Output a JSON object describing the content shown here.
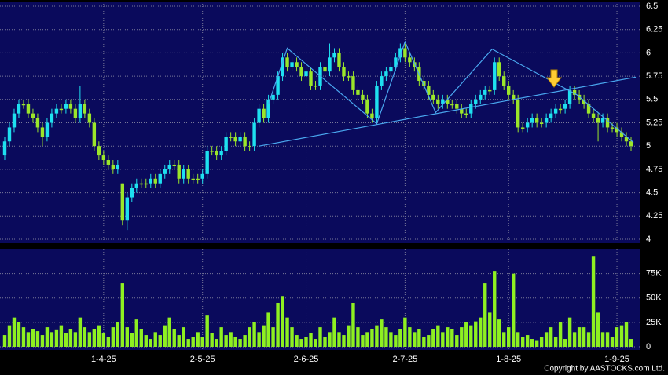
{
  "chart_data": {
    "type": "candlestick",
    "open": [
      4.9,
      5.05,
      5.2,
      5.35,
      5.45,
      5.45,
      5.35,
      5.3,
      5.2,
      5.1,
      5.25,
      5.35,
      5.4,
      5.4,
      5.45,
      5.4,
      5.3,
      5.45,
      5.35,
      5.25,
      5.0,
      4.9,
      4.85,
      4.8,
      4.75,
      4.6,
      4.2,
      4.45,
      4.55,
      4.6,
      4.6,
      4.6,
      4.65,
      4.6,
      4.7,
      4.75,
      4.8,
      4.8,
      4.65,
      4.75,
      4.65,
      4.65,
      4.65,
      4.7,
      4.95,
      4.95,
      4.9,
      4.95,
      5.1,
      5.1,
      5.05,
      5.1,
      5.0,
      5.0,
      5.25,
      5.4,
      5.3,
      5.5,
      5.55,
      5.75,
      5.95,
      5.85,
      5.9,
      5.85,
      5.75,
      5.8,
      5.65,
      5.65,
      5.85,
      5.8,
      5.95,
      6.0,
      5.85,
      5.75,
      5.75,
      5.6,
      5.55,
      5.5,
      5.35,
      5.3,
      5.65,
      5.75,
      5.8,
      5.85,
      5.95,
      6.05,
      5.95,
      5.9,
      5.85,
      5.7,
      5.65,
      5.55,
      5.5,
      5.45,
      5.5,
      5.45,
      5.45,
      5.4,
      5.35,
      5.35,
      5.45,
      5.5,
      5.55,
      5.6,
      5.6,
      5.9,
      5.75,
      5.65,
      5.55,
      5.5,
      5.2,
      5.2,
      5.25,
      5.3,
      5.25,
      5.25,
      5.3,
      5.35,
      5.4,
      5.4,
      5.45,
      5.6,
      5.55,
      5.5,
      5.45,
      5.35,
      5.3,
      5.25,
      5.3,
      5.2,
      5.2,
      5.15,
      5.1,
      5.05
    ],
    "high": [
      5.1,
      5.25,
      5.4,
      5.5,
      5.5,
      5.5,
      5.4,
      5.35,
      5.25,
      5.3,
      5.4,
      5.45,
      5.45,
      5.5,
      5.5,
      5.45,
      5.65,
      5.5,
      5.4,
      5.3,
      5.05,
      4.95,
      4.9,
      4.85,
      4.85,
      4.6,
      4.5,
      4.6,
      4.65,
      4.65,
      4.65,
      4.7,
      4.7,
      4.75,
      4.8,
      4.85,
      4.85,
      4.85,
      4.8,
      4.8,
      4.7,
      4.7,
      4.75,
      5.0,
      5.0,
      5.0,
      5.0,
      5.15,
      5.15,
      5.15,
      5.15,
      5.15,
      5.05,
      5.3,
      5.45,
      5.45,
      5.55,
      5.6,
      5.8,
      6.0,
      6.0,
      5.95,
      5.95,
      5.9,
      5.85,
      5.85,
      5.7,
      5.9,
      5.9,
      6.1,
      6.05,
      6.05,
      5.9,
      5.8,
      5.8,
      5.65,
      5.6,
      5.55,
      5.4,
      5.7,
      5.8,
      5.85,
      5.9,
      6.0,
      6.1,
      6.1,
      6.0,
      5.95,
      5.9,
      5.75,
      5.7,
      5.6,
      5.55,
      5.55,
      5.55,
      5.5,
      5.5,
      5.45,
      5.4,
      5.5,
      5.55,
      5.6,
      5.65,
      5.65,
      5.95,
      5.95,
      5.8,
      5.7,
      5.6,
      5.55,
      5.25,
      5.3,
      5.35,
      5.35,
      5.3,
      5.35,
      5.4,
      5.45,
      5.45,
      5.5,
      5.65,
      5.65,
      5.6,
      5.55,
      5.5,
      5.4,
      5.35,
      5.35,
      5.35,
      5.25,
      5.25,
      5.2,
      5.15,
      5.1
    ],
    "low": [
      4.85,
      5.0,
      5.15,
      5.3,
      5.4,
      5.3,
      5.25,
      5.15,
      5.0,
      5.05,
      5.2,
      5.3,
      5.35,
      5.35,
      5.35,
      5.25,
      5.25,
      5.3,
      5.2,
      4.95,
      4.85,
      4.8,
      4.75,
      4.7,
      4.7,
      4.15,
      4.1,
      4.4,
      4.5,
      4.55,
      4.55,
      4.55,
      4.55,
      4.55,
      4.65,
      4.7,
      4.75,
      4.6,
      4.6,
      4.6,
      4.6,
      4.6,
      4.6,
      4.65,
      4.9,
      4.85,
      4.85,
      4.9,
      5.05,
      5.0,
      5.0,
      4.95,
      4.95,
      4.95,
      5.2,
      5.25,
      5.25,
      5.45,
      5.5,
      5.7,
      5.8,
      5.8,
      5.8,
      5.7,
      5.7,
      5.6,
      5.6,
      5.6,
      5.75,
      5.75,
      5.9,
      5.8,
      5.7,
      5.7,
      5.55,
      5.5,
      5.45,
      5.3,
      5.25,
      5.25,
      5.6,
      5.7,
      5.75,
      5.8,
      5.9,
      5.9,
      5.85,
      5.8,
      5.65,
      5.6,
      5.5,
      5.45,
      5.4,
      5.4,
      5.4,
      5.4,
      5.35,
      5.3,
      5.3,
      5.3,
      5.4,
      5.45,
      5.5,
      5.55,
      5.55,
      5.7,
      5.6,
      5.5,
      5.45,
      5.15,
      5.15,
      5.15,
      5.2,
      5.2,
      5.2,
      5.2,
      5.25,
      5.3,
      5.35,
      5.35,
      5.4,
      5.5,
      5.45,
      5.4,
      5.3,
      5.25,
      5.05,
      5.2,
      5.15,
      5.15,
      5.1,
      5.05,
      5.0,
      4.95
    ],
    "close": [
      5.05,
      5.2,
      5.35,
      5.45,
      5.45,
      5.35,
      5.3,
      5.2,
      5.1,
      5.25,
      5.35,
      5.4,
      5.4,
      5.45,
      5.4,
      5.3,
      5.45,
      5.35,
      5.25,
      5.0,
      4.9,
      4.85,
      4.8,
      4.75,
      4.8,
      4.2,
      4.45,
      4.55,
      4.6,
      4.6,
      4.6,
      4.65,
      4.6,
      4.7,
      4.75,
      4.8,
      4.8,
      4.65,
      4.75,
      4.65,
      4.65,
      4.65,
      4.7,
      4.95,
      4.95,
      4.9,
      4.95,
      5.1,
      5.1,
      5.05,
      5.1,
      5.0,
      5.0,
      5.25,
      5.4,
      5.3,
      5.5,
      5.55,
      5.75,
      5.95,
      5.85,
      5.9,
      5.85,
      5.75,
      5.8,
      5.65,
      5.65,
      5.85,
      5.8,
      5.95,
      6.0,
      5.85,
      5.75,
      5.75,
      5.6,
      5.55,
      5.5,
      5.35,
      5.3,
      5.65,
      5.75,
      5.8,
      5.85,
      5.95,
      6.05,
      5.95,
      5.9,
      5.85,
      5.7,
      5.65,
      5.55,
      5.5,
      5.45,
      5.5,
      5.45,
      5.45,
      5.4,
      5.35,
      5.35,
      5.45,
      5.5,
      5.55,
      5.6,
      5.6,
      5.9,
      5.75,
      5.65,
      5.55,
      5.5,
      5.2,
      5.2,
      5.25,
      5.3,
      5.25,
      5.25,
      5.3,
      5.35,
      5.4,
      5.4,
      5.45,
      5.6,
      5.55,
      5.5,
      5.45,
      5.35,
      5.3,
      5.25,
      5.3,
      5.2,
      5.2,
      5.15,
      5.1,
      5.05,
      5.0
    ],
    "volume": [
      12000,
      22000,
      30000,
      25000,
      20000,
      15000,
      18000,
      16000,
      12000,
      20000,
      15000,
      17000,
      22000,
      14000,
      18000,
      15000,
      30000,
      20000,
      15000,
      18000,
      22000,
      14000,
      10000,
      20000,
      25000,
      65000,
      20000,
      14000,
      28000,
      18000,
      12000,
      8000,
      15000,
      12000,
      22000,
      30000,
      18000,
      12000,
      20000,
      8000,
      10000,
      15000,
      10000,
      32000,
      14000,
      8000,
      20000,
      12000,
      15000,
      10000,
      8000,
      12000,
      20000,
      25000,
      15000,
      22000,
      35000,
      20000,
      45000,
      52000,
      30000,
      20000,
      12000,
      8000,
      10000,
      14000,
      8000,
      20000,
      10000,
      15000,
      30000,
      15000,
      12000,
      22000,
      45000,
      20000,
      12000,
      15000,
      18000,
      22000,
      28000,
      20000,
      15000,
      12000,
      18000,
      30000,
      20000,
      15000,
      18000,
      10000,
      12000,
      18000,
      22000,
      15000,
      20000,
      18000,
      12000,
      20000,
      25000,
      22000,
      26000,
      30000,
      65000,
      35000,
      77000,
      28000,
      15000,
      20000,
      75000,
      15000,
      10000,
      12000,
      8000,
      6000,
      10000,
      15000,
      20000,
      10000,
      25000,
      8000,
      30000,
      15000,
      20000,
      20000,
      15000,
      93000,
      35000,
      15000,
      15000,
      10000,
      20000,
      22000,
      25000,
      8000
    ],
    "xlim": [
      -1,
      135
    ],
    "xticks": [
      {
        "value": 21,
        "label": "1-4-25"
      },
      {
        "value": 42,
        "label": "2-5-25"
      },
      {
        "value": 64,
        "label": "2-6-25"
      },
      {
        "value": 85,
        "label": "2-7-25"
      },
      {
        "value": 107,
        "label": "1-8-25"
      },
      {
        "value": 130,
        "label": "1-9-25"
      }
    ],
    "ylim": [
      4,
      6.5
    ],
    "yticks": [
      4,
      4.25,
      4.5,
      4.75,
      5,
      5.25,
      5.5,
      5.75,
      6,
      6.25,
      6.5
    ],
    "volume_ylim": [
      0,
      98000
    ],
    "volume_yticks": [
      0,
      {
        "value": 25000,
        "label": "25K"
      },
      {
        "value": 50000,
        "label": "50K"
      },
      {
        "value": 75000,
        "label": "75K"
      }
    ],
    "up_color": "#1ee0f0",
    "down_color": "#9be62a",
    "volume_color": "#8ef021",
    "trendline_color": "#4aa8f0",
    "trendlines": [
      {
        "x": [
          54,
          134
        ],
        "y": [
          5.0,
          5.74
        ]
      },
      {
        "x": [
          56,
          60,
          79,
          85,
          91.5,
          103.5,
          121.5,
          133.5
        ],
        "y": [
          5.45,
          6.05,
          5.24,
          6.12,
          5.36,
          6.04,
          5.55,
          5.04
        ]
      }
    ],
    "grid": true,
    "copyright": "Copyright by AASTOCKS.com Ltd."
  }
}
